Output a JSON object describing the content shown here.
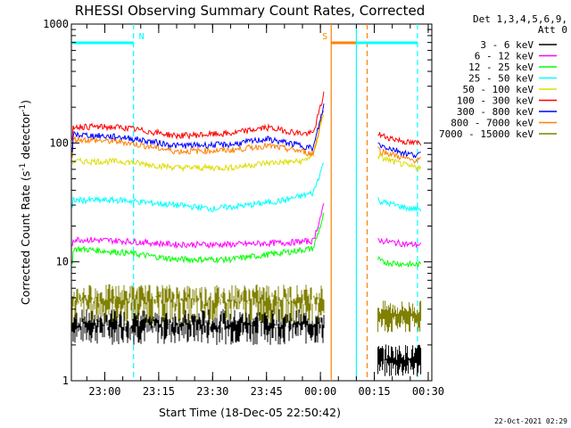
{
  "chart_data": {
    "type": "line",
    "title": "RHESSI Observing Summary Count Rates, Corrected",
    "xlabel": "Start Time (18-Dec-05 22:50:42)",
    "ylabel_main": "Corrected Count Rate (s",
    "ylabel_sup1": "-1",
    "ylabel_mid": " detector",
    "ylabel_sup2": "-1",
    "ylabel_end": ")",
    "yscale": "log",
    "ylim": [
      1,
      1000
    ],
    "xlim": [
      "22:50:42",
      "00:31"
    ],
    "x_ticks": [
      "23:00",
      "23:15",
      "23:30",
      "23:45",
      "00:00",
      "00:15",
      "00:30"
    ],
    "y_ticks": [
      "1",
      "10",
      "100",
      "1000"
    ],
    "legend_header": [
      "Det 1,3,4,5,6,9,",
      "Att 0"
    ],
    "legend_position": "right",
    "series": [
      {
        "name": "3 - 6 keV",
        "color": "#000000",
        "values_before_gap": "flickering between ~2 and ~4, rising to ~6 at 23:58",
        "level_after_gap": 1.5
      },
      {
        "name": "6 - 12 keV",
        "color": "#ff00ff",
        "x": [
          "22:51",
          "23:05",
          "23:20",
          "23:35",
          "23:50",
          "23:58",
          "00:01",
          "00:17",
          "00:25",
          "00:29"
        ],
        "y": [
          15.5,
          15,
          14,
          14,
          14.5,
          15,
          30,
          15,
          14,
          14
        ]
      },
      {
        "name": "12 - 25 keV",
        "color": "#00ff00",
        "x": [
          "22:51",
          "23:05",
          "23:20",
          "23:35",
          "23:50",
          "23:58",
          "00:01",
          "00:17",
          "00:25",
          "00:29"
        ],
        "y": [
          13,
          12,
          10.5,
          10.5,
          12,
          13,
          25,
          10,
          9.5,
          9.5
        ]
      },
      {
        "name": "25 - 50 keV",
        "color": "#00ffff",
        "x": [
          "22:51",
          "23:05",
          "23:20",
          "23:30",
          "23:40",
          "23:50",
          "23:58",
          "00:01",
          "00:17",
          "00:25",
          "00:29"
        ],
        "y": [
          33,
          33,
          30,
          28,
          30,
          33,
          38,
          70,
          32,
          28,
          28
        ]
      },
      {
        "name": "50 - 100 keV",
        "color": "#dddd00",
        "x": [
          "22:51",
          "23:05",
          "23:20",
          "23:35",
          "23:45",
          "23:55",
          "23:58",
          "00:01",
          "00:17",
          "00:25",
          "00:29"
        ],
        "y": [
          70,
          70,
          62,
          62,
          68,
          70,
          80,
          180,
          75,
          63,
          63
        ]
      },
      {
        "name": "100 - 300 keV",
        "color": "#ff0000",
        "x": [
          "22:51",
          "23:05",
          "23:20",
          "23:35",
          "23:45",
          "23:55",
          "23:58",
          "00:01",
          "00:17",
          "00:25",
          "00:29"
        ],
        "y": [
          138,
          135,
          115,
          120,
          135,
          120,
          120,
          260,
          115,
          100,
          100
        ]
      },
      {
        "name": "300 - 800 keV",
        "color": "#0000ff",
        "x": [
          "22:51",
          "23:05",
          "23:20",
          "23:35",
          "23:45",
          "23:55",
          "23:58",
          "00:01",
          "00:17",
          "00:25",
          "00:29"
        ],
        "y": [
          118,
          112,
          95,
          97,
          108,
          95,
          90,
          210,
          95,
          80,
          80
        ]
      },
      {
        "name": "800 - 7000 keV",
        "color": "#ff8000",
        "x": [
          "22:51",
          "23:05",
          "23:20",
          "23:35",
          "23:45",
          "23:55",
          "23:58",
          "00:01",
          "00:17",
          "00:25",
          "00:29"
        ],
        "y": [
          108,
          102,
          85,
          87,
          95,
          85,
          80,
          200,
          85,
          72,
          72
        ]
      },
      {
        "name": "7000 - 15000 keV",
        "color": "#808000",
        "values_before_gap": "flickering between ~3 and ~7",
        "level_after_gap": 3.5
      }
    ],
    "annotations": [
      {
        "text": "N",
        "color": "#00ffff",
        "x_range": [
          "22:51",
          "23:08"
        ],
        "dashed_at": "23:08"
      },
      {
        "text": "S",
        "color": "#ff8000",
        "x_range": [
          "00:03",
          "00:13"
        ],
        "solid_at": "00:03",
        "dashed_at": "00:13"
      },
      {
        "text": "",
        "color": "#00ffff",
        "x_range": [
          "00:10",
          "00:27"
        ],
        "solid_at": "00:10",
        "dashed_at": "00:27"
      }
    ],
    "grid": false
  },
  "footer": {
    "timestamp": "22-Oct-2021 02:29"
  }
}
